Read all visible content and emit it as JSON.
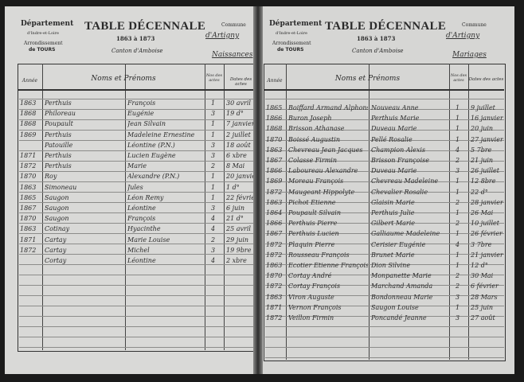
{
  "left_page": {
    "department_label": "Département",
    "department": "d'Indre-et-Loire",
    "arrondissement_label": "Arrondissement",
    "arrondissement": "de TOURS",
    "title": "TABLE DÉCENNALE",
    "years": "1863 à 1873",
    "canton": "Canton d'Amboise",
    "commune_label": "Commune",
    "commune": "d'Artigny",
    "register_type": "Naissances",
    "headers": {
      "annee": "Année",
      "noms": "Noms et Prénoms",
      "numero": "Nos des actes",
      "dates": "Dates des actes"
    },
    "rows": [
      [
        "1863",
        "Perthuis",
        "François",
        "1",
        "30 avril"
      ],
      [
        "1868",
        "Philoreau",
        "Eugénie",
        "3",
        "19 d°"
      ],
      [
        "1868",
        "Poupault",
        "Jean Silvain",
        "1",
        "7 janvier"
      ],
      [
        "1869",
        "Perthuis",
        "Madeleine Ernestine",
        "1",
        "2 juillet"
      ],
      [
        "",
        "Patouille",
        "Léontine (P.N.)",
        "3",
        "18 août"
      ],
      [
        "1871",
        "Perthuis",
        "Lucien Eugène",
        "3",
        "6 xbre"
      ],
      [
        "1872",
        "Perthuis",
        "Marie",
        "2",
        "8 Mai"
      ],
      [
        "1870",
        "Roy",
        "Alexandre (P.N.)",
        "1",
        "20 janvier"
      ],
      [
        "1863",
        "Simoneau",
        "Jules",
        "1",
        "1 d°"
      ],
      [
        "1865",
        "Saugon",
        "Léon Remy",
        "1",
        "22 février"
      ],
      [
        "1867",
        "Saugon",
        "Léontine",
        "3",
        "6 juin"
      ],
      [
        "1870",
        "Saugon",
        "François",
        "4",
        "21 d°"
      ],
      [
        "1863",
        "Cotinay",
        "Hyacinthe",
        "4",
        "25 avril"
      ],
      [
        "1871",
        "Cartay",
        "Marie Louise",
        "2",
        "29 juin"
      ],
      [
        "1872",
        "Cartay",
        "Michel",
        "3",
        "19 9bre"
      ],
      [
        "",
        "Cortay",
        "Léontine",
        "4",
        "2 xbre"
      ]
    ]
  },
  "right_page": {
    "department_label": "Département",
    "department": "d'Indre-et-Loire",
    "arrondissement_label": "Arrondissement",
    "arrondissement": "de TOURS",
    "title": "TABLE DÉCENNALE",
    "years": "1863 à 1873",
    "canton": "Canton d'Amboise",
    "commune_label": "Commune",
    "commune": "d'Artigny",
    "register_type": "Mariages",
    "headers": {
      "annee": "Année",
      "noms": "Noms et Prénoms",
      "numero": "Nos des actes",
      "dates": "Dates des actes"
    },
    "rows": [
      [
        "1865",
        "Boiffard Armand Alphonse",
        "Nouveau Anne",
        "1",
        "9 juillet"
      ],
      [
        "1866",
        "Buron Joseph",
        "Perthuis Marie",
        "1",
        "16 janvier"
      ],
      [
        "1868",
        "Brisson Athanase",
        "Duveau Marie",
        "1",
        "20 juin"
      ],
      [
        "1870",
        "Boissé Augustin",
        "Pellé Rosalie",
        "1",
        "27 janvier"
      ],
      [
        "1863",
        "Chevreau Jean Jacques",
        "Champion Alexis",
        "4",
        "5 7bre"
      ],
      [
        "1867",
        "Colasse Firmin",
        "Brisson Françoise",
        "2",
        "21 juin"
      ],
      [
        "1866",
        "Laboureau Alexandre",
        "Duveau Marie",
        "3",
        "26 juillet"
      ],
      [
        "1869",
        "Moreau François",
        "Chevreau Madeleine",
        "1",
        "12 8bre"
      ],
      [
        "1872",
        "Maugeant Hippolyte",
        "Chevalier Rosalie",
        "1",
        "22 d°"
      ],
      [
        "1863",
        "Pichot Étienne",
        "Glaisin Marie",
        "2",
        "28 janvier"
      ],
      [
        "1864",
        "Poupault Silvain",
        "Perthuis Julie",
        "1",
        "26 Mai"
      ],
      [
        "1866",
        "Perthuis Pierre",
        "Gilbert Marie",
        "2",
        "10 juillet"
      ],
      [
        "1867",
        "Perthuis Lucien",
        "Galliaume Madeleine",
        "1",
        "26 février"
      ],
      [
        "1872",
        "Plaquin Pierre",
        "Cerisier Eugénie",
        "4",
        "3 7bre"
      ],
      [
        "1872",
        "Rousseau François",
        "Brunet Marie",
        "1",
        "21 janvier"
      ],
      [
        "1863",
        "Ecotier Étienne François",
        "Dion Silvine",
        "1",
        "12 d°"
      ],
      [
        "1870",
        "Cortay André",
        "Monpanette Marie",
        "2",
        "30 Mai"
      ],
      [
        "1872",
        "Cortay François",
        "Marchand Amanda",
        "2",
        "6 février"
      ],
      [
        "1863",
        "Viron Auguste",
        "Bondonneau Marie",
        "3",
        "28 Mars"
      ],
      [
        "1871",
        "Vernon François",
        "Saugon Louise",
        "1",
        "25 juin"
      ],
      [
        "1872",
        "Veillon Firmin",
        "Poncandé Jeanne",
        "3",
        "27 août"
      ]
    ]
  }
}
